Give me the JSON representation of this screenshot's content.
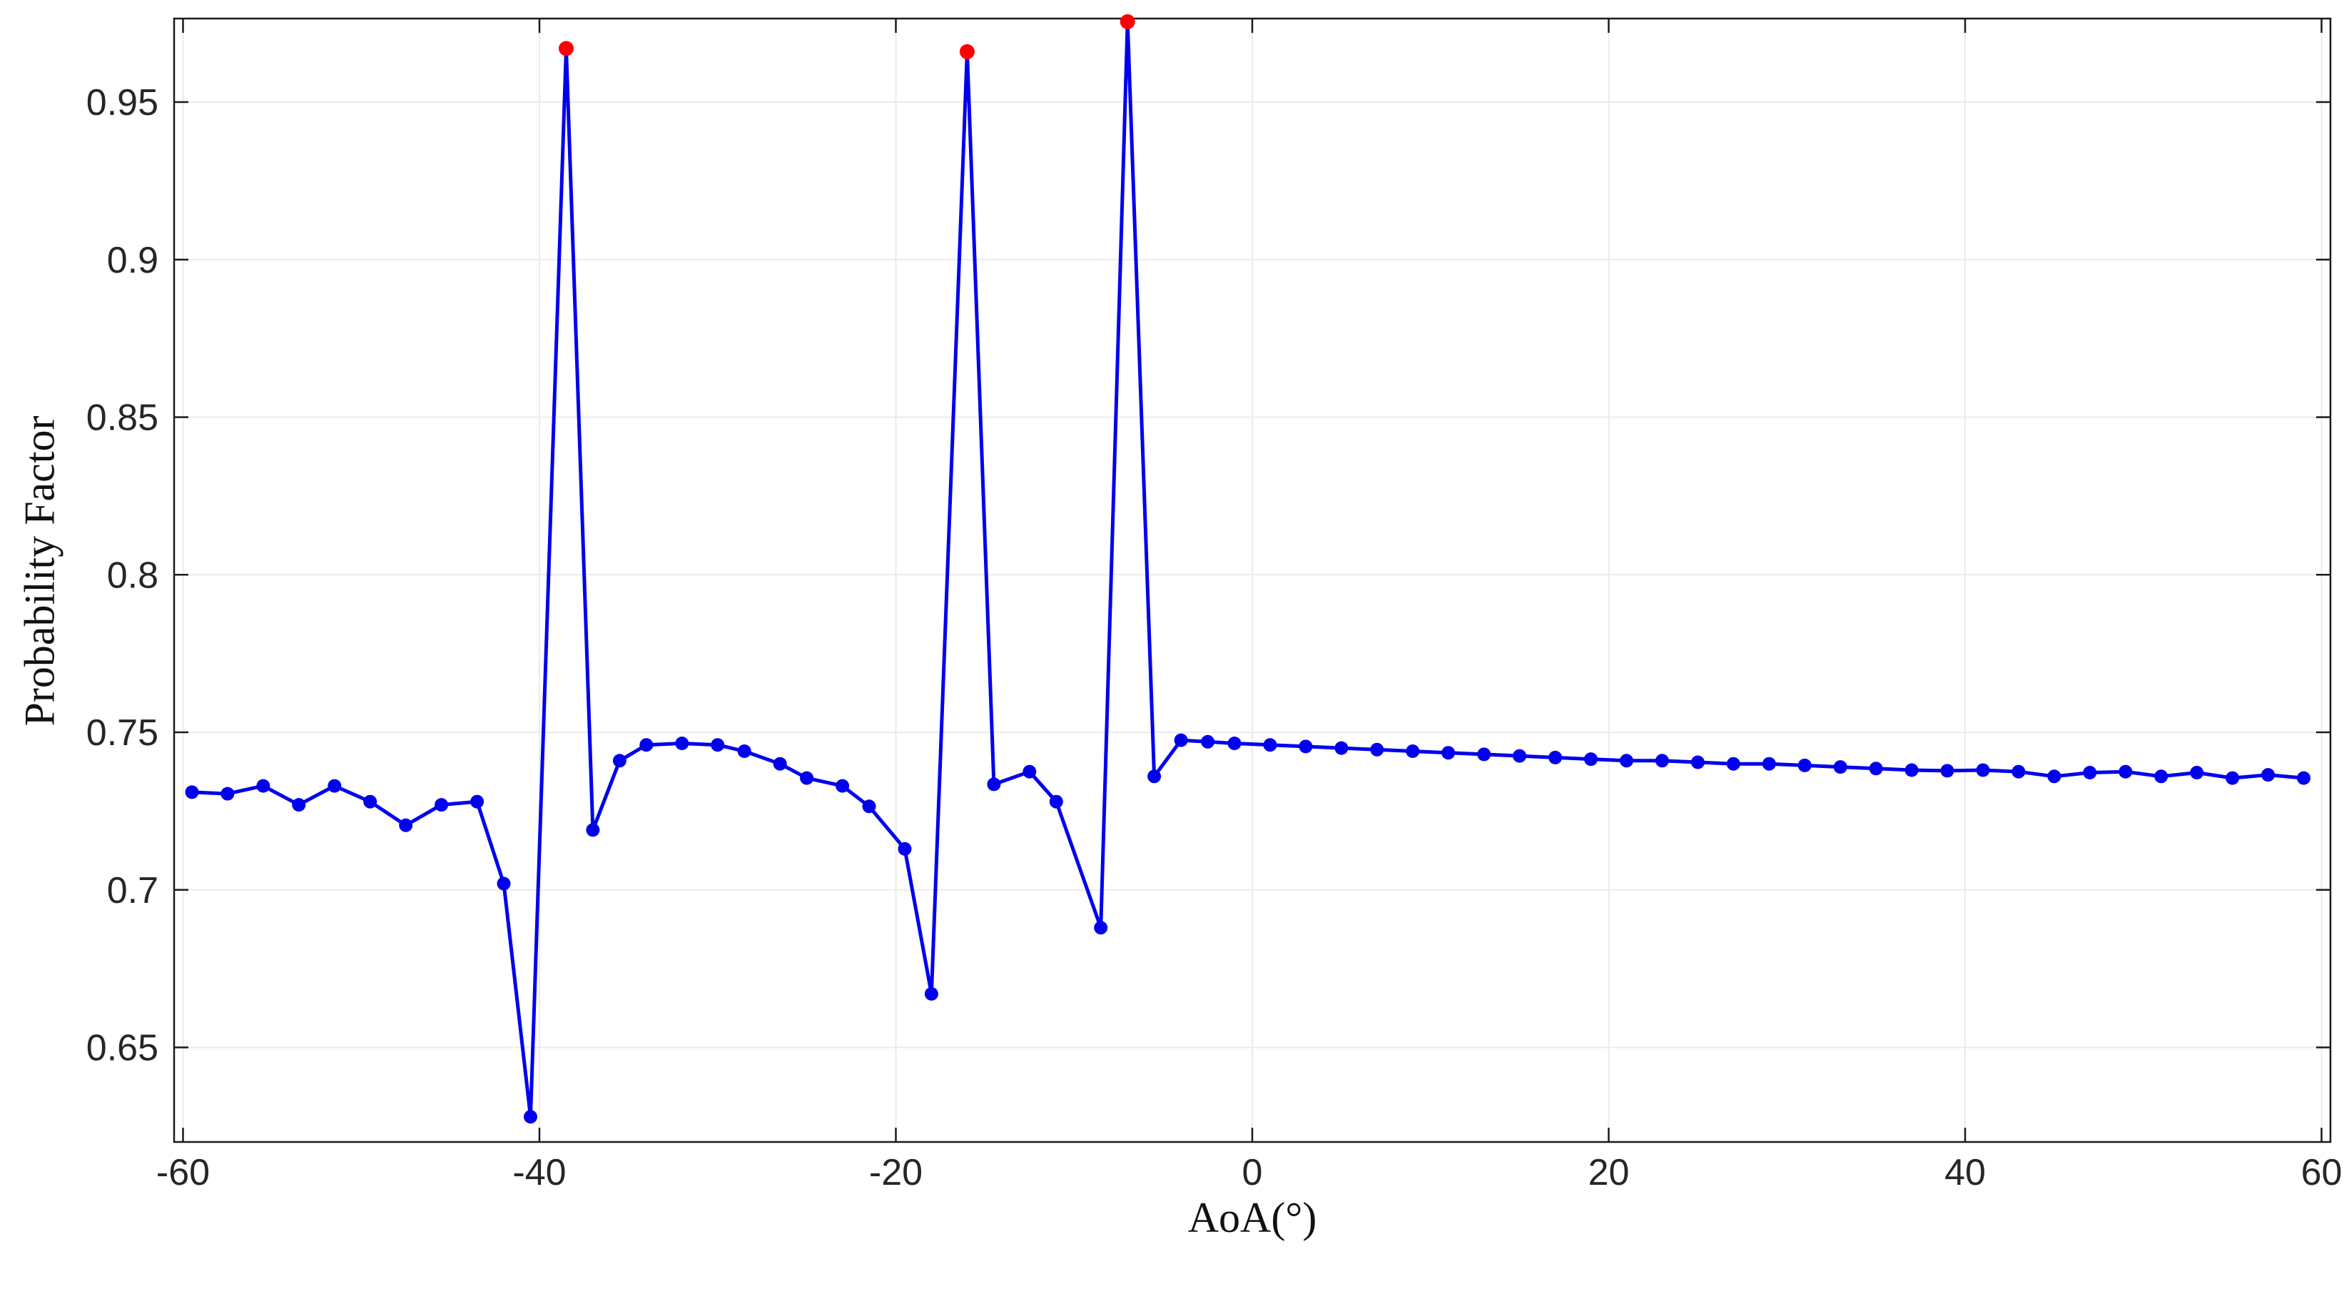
{
  "chart_data": {
    "type": "line",
    "title": "",
    "xlabel": "AoA(°)",
    "ylabel": "Probability Factor",
    "xlim": [
      -60.5,
      60.5
    ],
    "ylim": [
      0.62,
      0.9765
    ],
    "xticks": [
      -60,
      -40,
      -20,
      0,
      20,
      40,
      60
    ],
    "yticks": [
      0.65,
      0.7,
      0.75,
      0.8,
      0.85,
      0.9,
      0.95
    ],
    "grid": true,
    "legend": null,
    "style": {
      "line_color": "#0000EE",
      "marker_color": "#0000EE",
      "peak_color": "#FF0000",
      "grid_color": "#ebebeb",
      "axis_color": "#1a1a1a",
      "tick_label_color": "#262626",
      "background": "#ffffff"
    },
    "series": [
      {
        "name": "probability-factor-vs-aoa",
        "color": "#0000EE",
        "points": [
          [
            -59.5,
            0.731
          ],
          [
            -57.5,
            0.7305
          ],
          [
            -55.5,
            0.733
          ],
          [
            -53.5,
            0.727
          ],
          [
            -51.5,
            0.733
          ],
          [
            -49.5,
            0.728
          ],
          [
            -47.5,
            0.7205
          ],
          [
            -45.5,
            0.727
          ],
          [
            -43.5,
            0.728
          ],
          [
            -42,
            0.702
          ],
          [
            -40.5,
            0.628
          ],
          [
            -38.5,
            0.967
          ],
          [
            -37,
            0.719
          ],
          [
            -35.5,
            0.741
          ],
          [
            -34,
            0.746
          ],
          [
            -32,
            0.7465
          ],
          [
            -30,
            0.746
          ],
          [
            -28.5,
            0.744
          ],
          [
            -26.5,
            0.74
          ],
          [
            -25,
            0.7355
          ],
          [
            -23,
            0.733
          ],
          [
            -21.5,
            0.7265
          ],
          [
            -19.5,
            0.713
          ],
          [
            -18,
            0.667
          ],
          [
            -16,
            0.966
          ],
          [
            -14.5,
            0.7335
          ],
          [
            -12.5,
            0.7375
          ],
          [
            -11,
            0.728
          ],
          [
            -8.5,
            0.688
          ],
          [
            -7,
            0.9755
          ],
          [
            -5.5,
            0.736
          ],
          [
            -4,
            0.7475
          ],
          [
            -2.5,
            0.747
          ],
          [
            -1,
            0.7465
          ],
          [
            1,
            0.746
          ],
          [
            3,
            0.7455
          ],
          [
            5,
            0.745
          ],
          [
            7,
            0.7445
          ],
          [
            9,
            0.744
          ],
          [
            11,
            0.7435
          ],
          [
            13,
            0.743
          ],
          [
            15,
            0.7425
          ],
          [
            17,
            0.742
          ],
          [
            19,
            0.7415
          ],
          [
            21,
            0.741
          ],
          [
            23,
            0.741
          ],
          [
            25,
            0.7405
          ],
          [
            27,
            0.74
          ],
          [
            29,
            0.74
          ],
          [
            31,
            0.7395
          ],
          [
            33,
            0.739
          ],
          [
            35,
            0.7385
          ],
          [
            37,
            0.738
          ],
          [
            39,
            0.7378
          ],
          [
            41,
            0.738
          ],
          [
            43,
            0.7375
          ],
          [
            45,
            0.736
          ],
          [
            47,
            0.7372
          ],
          [
            49,
            0.7375
          ],
          [
            51,
            0.736
          ],
          [
            53,
            0.7372
          ],
          [
            55,
            0.7355
          ],
          [
            57,
            0.7365
          ],
          [
            59,
            0.7355
          ]
        ]
      }
    ],
    "peaks": [
      [
        -38.5,
        0.967
      ],
      [
        -16,
        0.966
      ],
      [
        -7,
        0.9755
      ]
    ]
  }
}
